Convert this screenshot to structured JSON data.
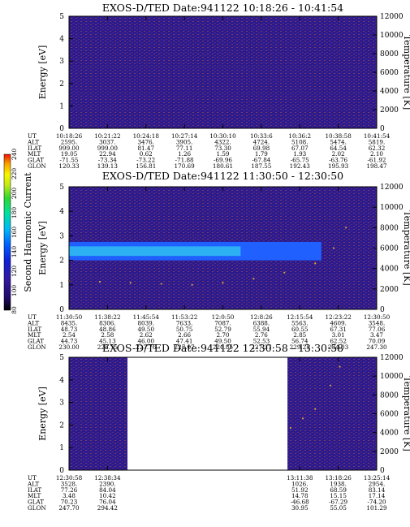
{
  "colors": {
    "background": "#2a1a8c",
    "noise": "#7a3a6a",
    "band_blue": "#2060ff",
    "band_cyan": "#30c0f0",
    "trace": "#d8a040",
    "axis": "#000000"
  },
  "colorbar": {
    "label": "Second Harmonic Current",
    "ticks": [
      "80",
      "100",
      "120",
      "140",
      "160",
      "180",
      "200",
      "220",
      "240"
    ],
    "colors": [
      "#000000",
      "#200a6a",
      "#3418a0",
      "#1020d8",
      "#0060ff",
      "#00b8f8",
      "#00e0a0",
      "#30d830",
      "#c0e818",
      "#f8f800",
      "#f8a000",
      "#f01000"
    ]
  },
  "ephem_labels": [
    "UT",
    "ALT",
    "ILAT",
    "MLT",
    "GLAT",
    "GLON"
  ],
  "chart_data": [
    {
      "type": "heatmap",
      "title": "EXOS-D/TED   Date:941122   10:18:26 - 10:41:54",
      "ylabel": "Energy [eV]",
      "y2label": "Temperature [K]",
      "ylim": [
        0,
        5
      ],
      "y2lim": [
        0,
        12000
      ],
      "yticks": [
        "0",
        "1",
        "2",
        "3",
        "4",
        "5"
      ],
      "y2ticks": [
        "0",
        "2000",
        "4000",
        "6000",
        "8000",
        "10000",
        "12000"
      ],
      "ephemeris": {
        "UT": [
          "10:18:26",
          "10:21:22",
          "10:24:18",
          "10:27:14",
          "10:30:10",
          "10:33:6",
          "10:36:2",
          "10:38:58",
          "10:41:54"
        ],
        "ALT": [
          "2595.",
          "3037.",
          "3476.",
          "3905.",
          "4322.",
          "4724.",
          "5108.",
          "5474.",
          "5819."
        ],
        "ILAT": [
          "999.00",
          "999.00",
          "81.47",
          "77.11",
          "73.30",
          "69.98",
          "67.07",
          "64.54",
          "62.32"
        ],
        "MLT": [
          "19.05",
          "22.94",
          "0.62",
          "1.26",
          "1.59",
          "1.79",
          "1.93",
          "2.02",
          "2.10"
        ],
        "GLAT": [
          "-71.55",
          "-73.34",
          "-73.22",
          "-71.88",
          "-69.96",
          "-67.84",
          "-65.75",
          "-63.76",
          "-61.92"
        ],
        "GLON": [
          "120.33",
          "139.13",
          "156.81",
          "170.69",
          "180.61",
          "187.55",
          "192.43",
          "195.93",
          "198.47"
        ]
      },
      "band": null,
      "temperature": []
    },
    {
      "type": "heatmap",
      "title": "EXOS-D/TED   Date:941122   11:30:50 - 12:30:50",
      "ylabel": "Energy [eV]",
      "y2label": "Temperature [K]",
      "ylim": [
        0,
        5
      ],
      "y2lim": [
        0,
        12000
      ],
      "yticks": [
        "0",
        "1",
        "2",
        "3",
        "4",
        "5"
      ],
      "y2ticks": [
        "0",
        "2000",
        "4000",
        "6000",
        "8000",
        "10000",
        "12000"
      ],
      "ephemeris": {
        "UT": [
          "11:30:50",
          "11:38:22",
          "11:45:54",
          "11:53:22",
          "12:0:50",
          "12:8:26",
          "12:15:54",
          "12:23:22",
          "12:30:50"
        ],
        "ALT": [
          "8435.",
          "8306.",
          "8039.",
          "7633.",
          "7087.",
          "6388.",
          "5563.",
          "4609.",
          "3548."
        ],
        "ILAT": [
          "48.73",
          "48.86",
          "49.50",
          "50.75",
          "52.79",
          "55.94",
          "60.55",
          "67.31",
          "77.06"
        ],
        "MLT": [
          "2.54",
          "2.58",
          "2.62",
          "2.66",
          "2.70",
          "2.76",
          "2.85",
          "3.01",
          "3.47"
        ],
        "GLAT": [
          "44.73",
          "45.13",
          "46.00",
          "47.41",
          "49.50",
          "52.53",
          "56.74",
          "62.52",
          "70.09"
        ],
        "GLON": [
          "230.00",
          "228.75",
          "227.76",
          "227.07",
          "226.85",
          "227.37",
          "229.25",
          "234.03",
          "247.30"
        ]
      },
      "band": {
        "e_low": 2.0,
        "e_high": 2.75,
        "t_end_frac": 0.82
      },
      "temperature": [
        {
          "t": 0.0,
          "K": 2800
        },
        {
          "t": 0.1,
          "K": 2700
        },
        {
          "t": 0.2,
          "K": 2600
        },
        {
          "t": 0.3,
          "K": 2500
        },
        {
          "t": 0.4,
          "K": 2400
        },
        {
          "t": 0.5,
          "K": 2600
        },
        {
          "t": 0.6,
          "K": 3000
        },
        {
          "t": 0.7,
          "K": 3600
        },
        {
          "t": 0.8,
          "K": 4500
        },
        {
          "t": 0.86,
          "K": 6000
        },
        {
          "t": 0.9,
          "K": 8000
        }
      ]
    },
    {
      "type": "heatmap",
      "title": "EXOS-D/TED   Date:941122   12:30:58 - 13:30:58",
      "ylabel": "Energy [eV]",
      "y2label": "Temperature [K]",
      "ylim": [
        0,
        5
      ],
      "y2lim": [
        0,
        12000
      ],
      "yticks": [
        "0",
        "1",
        "2",
        "3",
        "4",
        "5"
      ],
      "y2ticks": [
        "0",
        "2000",
        "4000",
        "6000",
        "8000",
        "10000",
        "12000"
      ],
      "ephemeris": {
        "UT": [
          "12:30:58",
          "12:38:34",
          "",
          "",
          "",
          "",
          "13:11:38",
          "13:18:26",
          "13:25:14"
        ],
        "ALT": [
          "3528.",
          "2390.",
          "",
          "",
          "",
          "",
          "1026.",
          "1938.",
          "2954."
        ],
        "ILAT": [
          "77.26",
          "84.04",
          "",
          "",
          "",
          "",
          "51.92",
          "68.59",
          "83.14"
        ],
        "MLT": [
          "3.48",
          "10.42",
          "",
          "",
          "",
          "",
          "14.78",
          "15.15",
          "17.14"
        ],
        "GLAT": [
          "70.23",
          "76.04",
          "",
          "",
          "",
          "",
          "-46.68",
          "-67.29",
          "-74.20"
        ],
        "GLON": [
          "247.70",
          "294.42",
          "",
          "",
          "",
          "",
          "30.95",
          "55.05",
          "101.29"
        ]
      },
      "gap": {
        "start_frac": 0.19,
        "end_frac": 0.71
      },
      "band": null,
      "temperature": [
        {
          "t": 0.72,
          "K": 4500
        },
        {
          "t": 0.76,
          "K": 5500
        },
        {
          "t": 0.8,
          "K": 6500
        },
        {
          "t": 0.85,
          "K": 9000
        },
        {
          "t": 0.88,
          "K": 11000
        }
      ]
    }
  ]
}
